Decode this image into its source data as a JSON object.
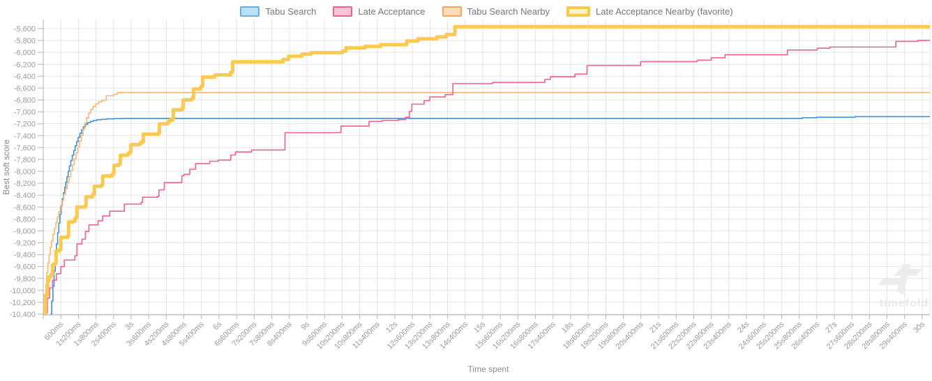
{
  "axes": {
    "x_label": "Time spent",
    "y_label": "Best soft score"
  },
  "watermark": {
    "text": "timefold"
  },
  "chart_data": {
    "type": "line",
    "step": true,
    "title": "",
    "xlabel": "Time spent",
    "ylabel": "Best soft score",
    "x_unit": "milliseconds",
    "x_tick_interval_ms": 600,
    "xlim_ms": [
      0,
      30000
    ],
    "ylim": [
      -10400,
      -5600
    ],
    "y_tick_step": 200,
    "grid": true,
    "legend_position": "top-center",
    "x_ticks": [
      "600ms",
      "1s200ms",
      "1s800ms",
      "2s400ms",
      "3s",
      "3s600ms",
      "4s200ms",
      "4s800ms",
      "5s400ms",
      "6s",
      "6s600ms",
      "7s200ms",
      "7s800ms",
      "8s400ms",
      "9s",
      "9s600ms",
      "10s200ms",
      "10s800ms",
      "11s400ms",
      "12s",
      "12s600ms",
      "13s200ms",
      "13s800ms",
      "14s400ms",
      "15s",
      "15s600ms",
      "16s200ms",
      "16s800ms",
      "17s400ms",
      "18s",
      "18s600ms",
      "19s200ms",
      "19s800ms",
      "20s400ms",
      "21s",
      "21s600ms",
      "22s200ms",
      "22s800ms",
      "23s400ms",
      "24s",
      "24s600ms",
      "25s200ms",
      "25s800ms",
      "26s400ms",
      "27s",
      "27s600ms",
      "28s200ms",
      "28s800ms",
      "29s400ms",
      "30s"
    ],
    "y_tick_labels": [
      "-5,600",
      "-5,800",
      "-6,000",
      "-6,200",
      "-6,400",
      "-6,600",
      "-6,800",
      "-7,000",
      "-7,200",
      "-7,400",
      "-7,600",
      "-7,800",
      "-8,000",
      "-8,200",
      "-8,400",
      "-8,600",
      "-8,800",
      "-9,000",
      "-9,200",
      "-9,400",
      "-9,600",
      "-9,800",
      "-10,000",
      "-10,200",
      "-10,400"
    ],
    "series": [
      {
        "name": "Tabu Search",
        "color": "#3d8fd9",
        "legend_fill": "#b9e0f7",
        "legend_border": "#62b1e8",
        "line_width": 1.6,
        "favorite": false,
        "points": [
          [
            250,
            -10400
          ],
          [
            290,
            -10180
          ],
          [
            330,
            -9930
          ],
          [
            370,
            -9680
          ],
          [
            410,
            -9440
          ],
          [
            450,
            -9220
          ],
          [
            490,
            -9030
          ],
          [
            530,
            -8870
          ],
          [
            570,
            -8720
          ],
          [
            610,
            -8580
          ],
          [
            650,
            -8460
          ],
          [
            690,
            -8360
          ],
          [
            730,
            -8270
          ],
          [
            770,
            -8180
          ],
          [
            810,
            -8090
          ],
          [
            850,
            -8000
          ],
          [
            890,
            -7910
          ],
          [
            940,
            -7820
          ],
          [
            990,
            -7730
          ],
          [
            1040,
            -7650
          ],
          [
            1090,
            -7570
          ],
          [
            1140,
            -7500
          ],
          [
            1190,
            -7430
          ],
          [
            1250,
            -7360
          ],
          [
            1310,
            -7300
          ],
          [
            1370,
            -7250
          ],
          [
            1440,
            -7210
          ],
          [
            1520,
            -7180
          ],
          [
            1610,
            -7160
          ],
          [
            1710,
            -7145
          ],
          [
            1830,
            -7133
          ],
          [
            1980,
            -7125
          ],
          [
            2160,
            -7118
          ],
          [
            2400,
            -7114
          ],
          [
            2700,
            -7111
          ],
          [
            25900,
            -7100
          ],
          [
            26400,
            -7090
          ],
          [
            27700,
            -7080
          ],
          [
            30000,
            -7080
          ]
        ]
      },
      {
        "name": "Late Acceptance",
        "color": "#ee6191",
        "legend_fill": "#f9c4d4",
        "legend_border": "#ee6191",
        "line_width": 1.6,
        "favorite": false,
        "points": [
          [
            80,
            -10380
          ],
          [
            140,
            -10130
          ],
          [
            220,
            -9960
          ],
          [
            320,
            -9830
          ],
          [
            450,
            -9720
          ],
          [
            600,
            -9600
          ],
          [
            720,
            -9490
          ],
          [
            1080,
            -9420
          ],
          [
            1150,
            -9220
          ],
          [
            1320,
            -9140
          ],
          [
            1440,
            -9010
          ],
          [
            1560,
            -8900
          ],
          [
            1870,
            -8830
          ],
          [
            2030,
            -8750
          ],
          [
            2270,
            -8670
          ],
          [
            2770,
            -8550
          ],
          [
            3340,
            -8520
          ],
          [
            3390,
            -8435
          ],
          [
            3900,
            -8420
          ],
          [
            3950,
            -8310
          ],
          [
            4130,
            -8190
          ],
          [
            4730,
            -8075
          ],
          [
            4800,
            -8050
          ],
          [
            5000,
            -7965
          ],
          [
            5200,
            -7870
          ],
          [
            5680,
            -7830
          ],
          [
            5970,
            -7810
          ],
          [
            6400,
            -7725
          ],
          [
            6560,
            -7675
          ],
          [
            7110,
            -7640
          ],
          [
            8250,
            -7350
          ],
          [
            10160,
            -7240
          ],
          [
            11120,
            -7160
          ],
          [
            11570,
            -7145
          ],
          [
            12120,
            -7130
          ],
          [
            12360,
            -7090
          ],
          [
            12500,
            -6990
          ],
          [
            12580,
            -6870
          ],
          [
            13000,
            -6810
          ],
          [
            13190,
            -6750
          ],
          [
            13720,
            -6710
          ],
          [
            13980,
            -6525
          ],
          [
            15340,
            -6505
          ],
          [
            17120,
            -6455
          ],
          [
            17310,
            -6410
          ],
          [
            18150,
            -6365
          ],
          [
            18560,
            -6220
          ],
          [
            20390,
            -6155
          ],
          [
            22320,
            -6130
          ],
          [
            22800,
            -6090
          ],
          [
            23270,
            -6040
          ],
          [
            25400,
            -5960
          ],
          [
            26420,
            -5930
          ],
          [
            26850,
            -5910
          ],
          [
            29100,
            -5815
          ],
          [
            29850,
            -5800
          ],
          [
            30000,
            -5800
          ]
        ]
      },
      {
        "name": "Tabu Search Nearby",
        "color": "#fcb572",
        "legend_fill": "#fddcb8",
        "legend_border": "#f8a556",
        "line_width": 1.6,
        "favorite": false,
        "points": [
          [
            40,
            -10380
          ],
          [
            60,
            -10150
          ],
          [
            90,
            -9900
          ],
          [
            120,
            -9700
          ],
          [
            160,
            -9540
          ],
          [
            200,
            -9400
          ],
          [
            240,
            -9280
          ],
          [
            280,
            -9170
          ],
          [
            330,
            -9060
          ],
          [
            380,
            -8960
          ],
          [
            430,
            -8860
          ],
          [
            480,
            -8770
          ],
          [
            530,
            -8680
          ],
          [
            580,
            -8590
          ],
          [
            640,
            -8490
          ],
          [
            700,
            -8390
          ],
          [
            760,
            -8290
          ],
          [
            820,
            -8190
          ],
          [
            880,
            -8090
          ],
          [
            940,
            -7990
          ],
          [
            1000,
            -7890
          ],
          [
            1060,
            -7790
          ],
          [
            1120,
            -7690
          ],
          [
            1180,
            -7590
          ],
          [
            1240,
            -7490
          ],
          [
            1300,
            -7390
          ],
          [
            1360,
            -7290
          ],
          [
            1420,
            -7190
          ],
          [
            1480,
            -7100
          ],
          [
            1550,
            -7020
          ],
          [
            1620,
            -6960
          ],
          [
            1700,
            -6910
          ],
          [
            1790,
            -6865
          ],
          [
            1890,
            -6830
          ],
          [
            2000,
            -6805
          ],
          [
            2150,
            -6730
          ],
          [
            2400,
            -6705
          ],
          [
            2530,
            -6675
          ],
          [
            30000,
            -6675
          ]
        ]
      },
      {
        "name": "Late Acceptance Nearby (favorite)",
        "color": "#fcca52",
        "legend_fill": "#fdf2cb",
        "legend_border": "#fbc93f",
        "line_width": 5,
        "favorite": true,
        "points": [
          [
            30,
            -10390
          ],
          [
            75,
            -10080
          ],
          [
            150,
            -9840
          ],
          [
            195,
            -9770
          ],
          [
            265,
            -9730
          ],
          [
            315,
            -9570
          ],
          [
            385,
            -9550
          ],
          [
            435,
            -9340
          ],
          [
            555,
            -9315
          ],
          [
            600,
            -9110
          ],
          [
            840,
            -9085
          ],
          [
            865,
            -8850
          ],
          [
            1030,
            -8840
          ],
          [
            1080,
            -8790
          ],
          [
            1105,
            -8780
          ],
          [
            1150,
            -8600
          ],
          [
            1435,
            -8580
          ],
          [
            1460,
            -8430
          ],
          [
            1675,
            -8405
          ],
          [
            1700,
            -8380
          ],
          [
            1745,
            -8250
          ],
          [
            1985,
            -8230
          ],
          [
            2030,
            -8080
          ],
          [
            2340,
            -8055
          ],
          [
            2390,
            -8030
          ],
          [
            2415,
            -7900
          ],
          [
            2580,
            -7880
          ],
          [
            2630,
            -7730
          ],
          [
            2890,
            -7700
          ],
          [
            2940,
            -7680
          ],
          [
            2990,
            -7550
          ],
          [
            3300,
            -7530
          ],
          [
            3345,
            -7505
          ],
          [
            3415,
            -7375
          ],
          [
            3940,
            -7350
          ],
          [
            3965,
            -7200
          ],
          [
            4250,
            -7175
          ],
          [
            4300,
            -7155
          ],
          [
            4320,
            -7140
          ],
          [
            4415,
            -7120
          ],
          [
            4440,
            -6965
          ],
          [
            4725,
            -6945
          ],
          [
            4775,
            -6800
          ],
          [
            5035,
            -6790
          ],
          [
            5085,
            -6765
          ],
          [
            5130,
            -6615
          ],
          [
            5370,
            -6590
          ],
          [
            5395,
            -6565
          ],
          [
            5440,
            -6415
          ],
          [
            5845,
            -6390
          ],
          [
            5870,
            -6380
          ],
          [
            6395,
            -6335
          ],
          [
            6445,
            -6320
          ],
          [
            6465,
            -6160
          ],
          [
            8185,
            -6120
          ],
          [
            8375,
            -6065
          ],
          [
            8830,
            -6030
          ],
          [
            9140,
            -6005
          ],
          [
            10210,
            -5980
          ],
          [
            10330,
            -5925
          ],
          [
            10975,
            -5900
          ],
          [
            11520,
            -5870
          ],
          [
            12405,
            -5810
          ],
          [
            12785,
            -5772
          ],
          [
            13430,
            -5740
          ],
          [
            13760,
            -5700
          ],
          [
            14050,
            -5570
          ],
          [
            30000,
            -5570
          ]
        ]
      }
    ]
  }
}
